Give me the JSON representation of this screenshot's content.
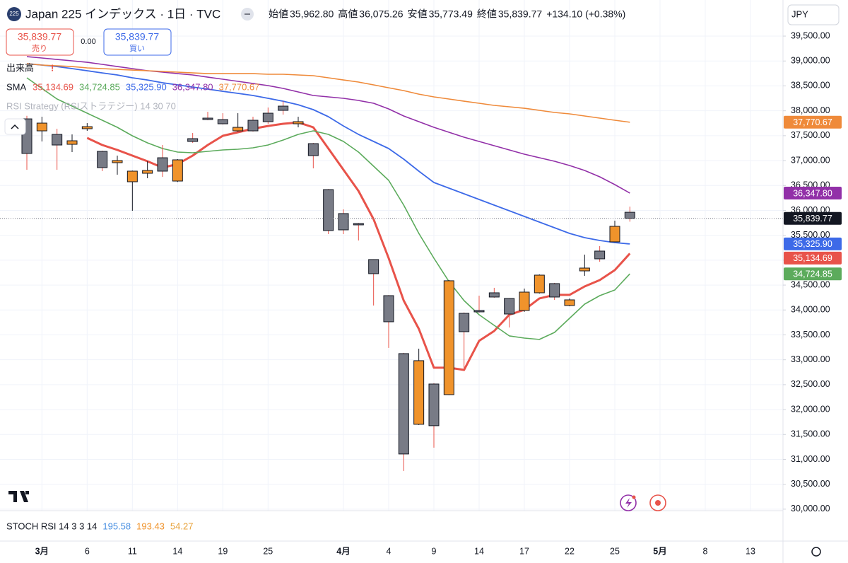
{
  "chart_data": {
    "type": "candlestick",
    "icon_text": "225",
    "title": "Japan 225 インデックス · 1日 · TVC",
    "header": {
      "open_label": "始値",
      "open": "35,962.80",
      "high_label": "高値",
      "high": "36,075.26",
      "low_label": "安値",
      "low": "35,773.49",
      "close_label": "終値",
      "close": "35,839.77",
      "change": "+134.10 (+0.38%)"
    },
    "currency": "JPY",
    "sell_price": "35,839.77",
    "sell_label": "売り",
    "spread": "0.00",
    "buy_price": "35,839.77",
    "buy_label": "買い",
    "volume_label": "出来高",
    "volume_alert": "!",
    "indicator_label": "SMA",
    "strategy_label": "RSI Strategy (RSIストラテジー) 14 30 70",
    "stoch": {
      "label": "STOCH RSI 14 3 3 14",
      "values": [
        {
          "text": "195.58",
          "color": "#4a90e2"
        },
        {
          "text": "193.43",
          "color": "#f0932b"
        },
        {
          "text": "54.27",
          "color": "#e8a33c"
        }
      ]
    },
    "last_price_label": "35,839.77",
    "categories": [
      null,
      "3月",
      null,
      null,
      "6",
      null,
      null,
      "11",
      null,
      null,
      "14",
      null,
      null,
      "19",
      null,
      null,
      "25",
      null,
      null,
      null,
      null,
      "4月",
      null,
      null,
      "4",
      null,
      null,
      "9",
      null,
      null,
      "14",
      null,
      null,
      "17",
      null,
      null,
      "22",
      null,
      null,
      "25",
      null,
      null,
      "5月",
      null,
      null,
      "8",
      null,
      null,
      "13",
      null,
      null
    ],
    "open": [
      37838,
      37597,
      37526,
      37327,
      37640,
      37185,
      36958,
      36575,
      36745,
      37057,
      36589,
      37441,
      37853,
      37824,
      37597,
      37810,
      37952,
      38094,
      37739,
      37341,
      36418,
      35936,
      35737,
      35013,
      34288,
      33124,
      31704,
      32513,
      32300,
      33933,
      33990,
      34345,
      34232,
      33990,
      34345,
      34530,
      34090,
      34785,
      35183,
      35368,
      35962.8,
      null,
      null,
      null,
      null,
      null,
      null,
      null,
      null,
      null,
      null
    ],
    "high": [
      37900,
      37881,
      37640,
      37526,
      37753,
      37200,
      37100,
      36800,
      36986,
      37313,
      37030,
      37554,
      37980,
      37952,
      37952,
      37881,
      38066,
      38193,
      37881,
      37355,
      36430,
      36021,
      35750,
      35020,
      34300,
      33140,
      33223,
      32530,
      34600,
      33950,
      34288,
      34445,
      34240,
      34430,
      34714,
      34545,
      34232,
      35112,
      35282,
      35794,
      36075.26,
      null,
      null,
      null,
      null,
      null,
      null,
      null,
      null,
      null,
      null
    ],
    "low": [
      36816,
      37384,
      36816,
      37171,
      37597,
      36788,
      36717,
      35992,
      36646,
      36674,
      36570,
      37355,
      37810,
      37725,
      37583,
      37583,
      37739,
      37924,
      37668,
      36844,
      35524,
      35524,
      35396,
      34090,
      33238,
      30767,
      31690,
      31235,
      32290,
      32840,
      33950,
      34246,
      33649,
      33962,
      34330,
      34203,
      34075,
      34686,
      34970,
      35360,
      35773.49,
      null,
      null,
      null,
      null,
      null,
      null,
      null,
      null,
      null,
      null
    ],
    "close": [
      37143,
      37753,
      37313,
      37398,
      37682,
      36859,
      37001,
      36788,
      36802,
      36788,
      37015,
      37384,
      37824,
      37739,
      37668,
      37597,
      37782,
      38009,
      37782,
      37100,
      35595,
      35609,
      35709,
      34729,
      33763,
      31108,
      32982,
      31676,
      34587,
      33564,
      33962,
      34260,
      33919,
      34359,
      34700,
      34260,
      34203,
      34842,
      35027,
      35680,
      35839.77,
      null,
      null,
      null,
      null,
      null,
      null,
      null,
      null,
      null,
      null
    ],
    "up_color": "#f0932b",
    "down_color": "#787b86",
    "series": [
      {
        "color": "#e8534a",
        "width": 3,
        "value_label": "35,134.69",
        "values": [
          null,
          null,
          null,
          null,
          37455,
          37313,
          37214,
          37100,
          36986,
          36859,
          36930,
          37100,
          37313,
          37498,
          37569,
          37640,
          37696,
          37739,
          37767,
          37668,
          37242,
          36816,
          36390,
          35822,
          35041,
          34189,
          33621,
          32840,
          32840,
          32797,
          33380,
          33578,
          33905,
          34004,
          34232,
          34303,
          34303,
          34473,
          34601,
          34800,
          35134.69,
          null,
          null,
          null,
          null,
          null,
          null,
          null,
          null,
          null,
          null
        ]
      },
      {
        "color": "#5cab5c",
        "width": 1.6,
        "value_label": "34,724.85",
        "values": [
          38662,
          38449,
          38236,
          38094,
          37952,
          37810,
          37668,
          37498,
          37356,
          37242,
          37171,
          37157,
          37185,
          37214,
          37228,
          37256,
          37313,
          37412,
          37526,
          37597,
          37526,
          37384,
          37171,
          36887,
          36603,
          36106,
          35538,
          35041,
          34572,
          34189,
          33905,
          33692,
          33479,
          33436,
          33408,
          33550,
          33834,
          34118,
          34288,
          34402,
          34724.85,
          null,
          null,
          null,
          null,
          null,
          null,
          null,
          null,
          null,
          null
        ]
      },
      {
        "color": "#3d6ae8",
        "width": 1.8,
        "value_label": "35,325.90",
        "values": [
          38946,
          38918,
          38889,
          38847,
          38804,
          38761,
          38719,
          38662,
          38619,
          38563,
          38520,
          38477,
          38435,
          38392,
          38350,
          38307,
          38250,
          38193,
          38122,
          38023,
          37881,
          37696,
          37526,
          37384,
          37242,
          37029,
          36788,
          36560,
          36447,
          36333,
          36220,
          36106,
          35992,
          35879,
          35765,
          35652,
          35538,
          35453,
          35396,
          35353,
          35325.9,
          null,
          null,
          null,
          null,
          null,
          null,
          null,
          null,
          null,
          null
        ]
      },
      {
        "color": "#9230a8",
        "width": 1.6,
        "value_label": "36,347.80",
        "values": [
          39088,
          39060,
          39031,
          39003,
          38974,
          38932,
          38889,
          38847,
          38804,
          38776,
          38747,
          38719,
          38676,
          38634,
          38591,
          38548,
          38506,
          38449,
          38378,
          38307,
          38279,
          38250,
          38208,
          38151,
          38037,
          37895,
          37782,
          37668,
          37569,
          37469,
          37384,
          37299,
          37214,
          37128,
          37057,
          36986,
          36901,
          36802,
          36674,
          36518,
          36347.8,
          null,
          null,
          null,
          null,
          null,
          null,
          null,
          null,
          null,
          null
        ]
      },
      {
        "color": "#ef8a3a",
        "width": 1.6,
        "value_label": "37,770.67",
        "values": [
          38946,
          38918,
          38903,
          38889,
          38861,
          38847,
          38832,
          38818,
          38804,
          38790,
          38776,
          38761,
          38747,
          38747,
          38747,
          38747,
          38733,
          38733,
          38719,
          38705,
          38662,
          38619,
          38577,
          38520,
          38463,
          38406,
          38335,
          38279,
          38236,
          38193,
          38151,
          38108,
          38080,
          38051,
          38009,
          37966,
          37938,
          37895,
          37853,
          37810,
          37770.67,
          null,
          null,
          null,
          null,
          null,
          null,
          null,
          null,
          null,
          null
        ]
      }
    ],
    "ylim": [
      29970,
      40225
    ],
    "yticks": [
      {
        "value": 39500,
        "label": "39,500.00"
      },
      {
        "value": 39000,
        "label": "39,000.00"
      },
      {
        "value": 38500,
        "label": "38,500.00"
      },
      {
        "value": 38000,
        "label": "38,000.00"
      },
      {
        "value": 37500,
        "label": "37,500.00"
      },
      {
        "value": 37000,
        "label": "37,000.00"
      },
      {
        "value": 36500,
        "label": "36,500.00"
      },
      {
        "value": 36000,
        "label": "36,000.00"
      },
      {
        "value": 35500,
        "label": "35,500.00"
      },
      {
        "value": 35000,
        "label": "35,000.00"
      },
      {
        "value": 34500,
        "label": "34,500.00"
      },
      {
        "value": 34000,
        "label": "34,000.00"
      },
      {
        "value": 33500,
        "label": "33,500.00"
      },
      {
        "value": 33000,
        "label": "33,000.00"
      },
      {
        "value": 32500,
        "label": "32,500.00"
      },
      {
        "value": 32000,
        "label": "32,000.00"
      },
      {
        "value": 31500,
        "label": "31,500.00"
      },
      {
        "value": 31000,
        "label": "31,000.00"
      },
      {
        "value": 30500,
        "label": "30,500.00"
      },
      {
        "value": 30000,
        "label": "30,000.00"
      }
    ],
    "grid": true
  }
}
